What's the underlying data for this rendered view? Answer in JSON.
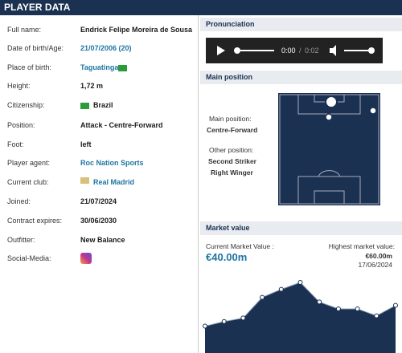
{
  "header": {
    "title": "PLAYER DATA"
  },
  "player_data": {
    "rows": [
      {
        "label": "Full name:",
        "value": "Endrick Felipe Moreira de Sousa"
      },
      {
        "label": "Date of birth/Age:",
        "value": "21/07/2006 (20)"
      },
      {
        "label": "Place of birth:",
        "value": "Taguatinga"
      },
      {
        "label": "Height:",
        "value": "1,72 m"
      },
      {
        "label": "Citizenship:",
        "value": "Brazil"
      },
      {
        "label": "Position:",
        "value": "Attack - Centre-Forward"
      },
      {
        "label": "Foot:",
        "value": "left"
      },
      {
        "label": "Player agent:",
        "value": "Roc Nation Sports"
      },
      {
        "label": "Current club:",
        "value": "Real Madrid"
      },
      {
        "label": "Joined:",
        "value": "21/07/2024"
      },
      {
        "label": "Contract expires:",
        "value": "30/06/2030"
      },
      {
        "label": "Outfitter:",
        "value": "New Balance"
      },
      {
        "label": "Social-Media:",
        "value": null
      }
    ]
  },
  "pronunciation": {
    "title": "Pronunciation",
    "current_time": "0:00",
    "separator": "/",
    "duration": "0:02"
  },
  "main_position": {
    "title": "Main position",
    "main_label": "Main position:",
    "main": "Centre-Forward",
    "other_label": "Other position:",
    "others": [
      "Second Striker",
      "Right Winger"
    ]
  },
  "market_value": {
    "title": "Market value",
    "current_label": "Current Market Value :",
    "current": "€40.00m",
    "highest_label": "Highest market value:",
    "highest": "€60.00m",
    "highest_date": "17/06/2024",
    "history": {
      "values": [
        22,
        26,
        29,
        47,
        54,
        60,
        43,
        37,
        37,
        31,
        40
      ]
    }
  }
}
